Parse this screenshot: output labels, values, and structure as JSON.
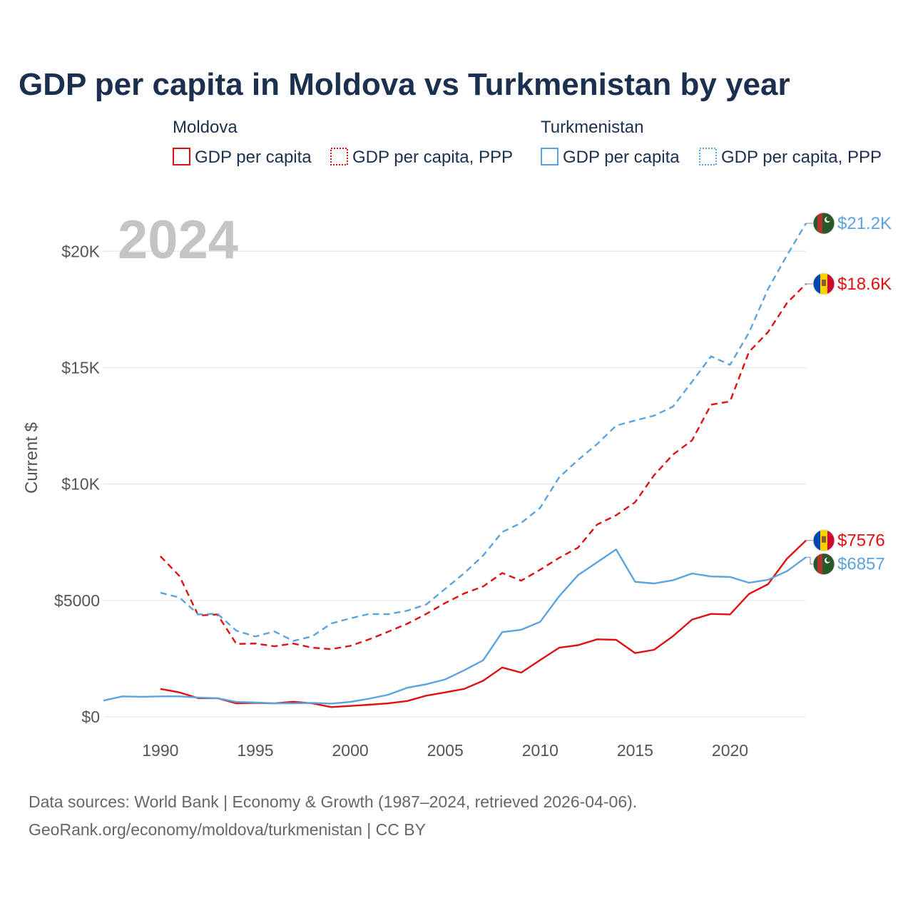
{
  "title": "GDP per capita in Moldova vs Turkmenistan by year",
  "year_display": "2024",
  "legend": {
    "groups": [
      {
        "name": "Moldova",
        "items": [
          {
            "label": "GDP per capita",
            "color": "#e01010",
            "style": "solid"
          },
          {
            "label": "GDP per capita, PPP",
            "color": "#e01010",
            "style": "dotted"
          }
        ]
      },
      {
        "name": "Turkmenistan",
        "items": [
          {
            "label": "GDP per capita",
            "color": "#5ba3e0",
            "style": "solid"
          },
          {
            "label": "GDP per capita, PPP",
            "color": "#5ba3e0",
            "style": "dotted"
          }
        ]
      }
    ]
  },
  "source_lines": [
    "Data sources: World Bank | Economy & Growth (1987–2024, retrieved 2026-04-06).",
    "GeoRank.org/economy/moldova/turkmenistan | CC BY"
  ],
  "chart_data": {
    "type": "line",
    "ylabel": "Current $",
    "xlabel": "",
    "xlim": [
      1987,
      2024
    ],
    "ylim": [
      0,
      22000
    ],
    "x_ticks": [
      1990,
      1995,
      2000,
      2005,
      2010,
      2015,
      2020
    ],
    "x_tick_labels": [
      "1990",
      "1995",
      "2000",
      "2005",
      "2010",
      "2015",
      "2020"
    ],
    "y_ticks": [
      0,
      5000,
      10000,
      15000,
      20000
    ],
    "y_tick_labels": [
      "$0",
      "$5000",
      "$10K",
      "$15K",
      "$20K"
    ],
    "grid": true,
    "series": [
      {
        "name": "Moldova GDP per capita",
        "country": "Moldova",
        "color": "#e01010",
        "dash": "solid",
        "end_label": "$7576",
        "x": [
          1990,
          1991,
          1992,
          1993,
          1994,
          1995,
          1996,
          1997,
          1998,
          1999,
          2000,
          2001,
          2002,
          2003,
          2004,
          2005,
          2006,
          2007,
          2008,
          2009,
          2010,
          2011,
          2012,
          2013,
          2014,
          2015,
          2016,
          2017,
          2018,
          2019,
          2020,
          2021,
          2022,
          2023,
          2024
        ],
        "values": [
          1200,
          1050,
          800,
          800,
          580,
          600,
          580,
          650,
          580,
          420,
          470,
          520,
          580,
          680,
          910,
          1050,
          1200,
          1550,
          2120,
          1900,
          2440,
          2970,
          3080,
          3330,
          3310,
          2740,
          2880,
          3470,
          4180,
          4420,
          4400,
          5280,
          5700,
          6800,
          7576
        ]
      },
      {
        "name": "Moldova GDP per capita, PPP",
        "country": "Moldova",
        "color": "#e01010",
        "dash": "dashed",
        "end_label": "$18.6K",
        "x": [
          1990,
          1991,
          1992,
          1993,
          1994,
          1995,
          1996,
          1997,
          1998,
          1999,
          2000,
          2001,
          2002,
          2003,
          2004,
          2005,
          2006,
          2007,
          2008,
          2009,
          2010,
          2011,
          2012,
          2013,
          2014,
          2015,
          2016,
          2017,
          2018,
          2019,
          2020,
          2021,
          2022,
          2023,
          2024
        ],
        "values": [
          6900,
          6050,
          4350,
          4400,
          3130,
          3150,
          3030,
          3150,
          2970,
          2910,
          3050,
          3330,
          3660,
          4000,
          4420,
          4890,
          5300,
          5600,
          6180,
          5850,
          6320,
          6830,
          7270,
          8260,
          8660,
          9220,
          10380,
          11270,
          11880,
          13410,
          13550,
          15680,
          16530,
          17780,
          18600
        ]
      },
      {
        "name": "Turkmenistan GDP per capita",
        "country": "Turkmenistan",
        "color": "#5ba3e0",
        "dash": "solid",
        "end_label": "$6857",
        "x": [
          1987,
          1988,
          1989,
          1990,
          1991,
          1992,
          1993,
          1994,
          1995,
          1996,
          1997,
          1998,
          1999,
          2000,
          2001,
          2002,
          2003,
          2004,
          2005,
          2006,
          2007,
          2008,
          2009,
          2010,
          2011,
          2012,
          2013,
          2014,
          2015,
          2016,
          2017,
          2018,
          2019,
          2020,
          2021,
          2022,
          2023,
          2024
        ],
        "values": [
          700,
          880,
          860,
          880,
          880,
          830,
          800,
          640,
          620,
          580,
          580,
          600,
          570,
          640,
          780,
          950,
          1250,
          1400,
          1610,
          2000,
          2430,
          3640,
          3740,
          4080,
          5180,
          6090,
          6640,
          7190,
          5800,
          5730,
          5870,
          6160,
          6030,
          6010,
          5760,
          5890,
          6260,
          6857
        ]
      },
      {
        "name": "Turkmenistan GDP per capita, PPP",
        "country": "Turkmenistan",
        "color": "#5ba3e0",
        "dash": "dashed",
        "end_label": "$21.2K",
        "x": [
          1990,
          1991,
          1992,
          1993,
          1994,
          1995,
          1996,
          1997,
          1998,
          1999,
          2000,
          2001,
          2002,
          2003,
          2004,
          2005,
          2006,
          2007,
          2008,
          2009,
          2010,
          2011,
          2012,
          2013,
          2014,
          2015,
          2016,
          2017,
          2018,
          2019,
          2020,
          2021,
          2022,
          2023,
          2024
        ],
        "values": [
          5330,
          5130,
          4400,
          4430,
          3700,
          3450,
          3670,
          3260,
          3460,
          4010,
          4230,
          4420,
          4410,
          4560,
          4830,
          5500,
          6170,
          6930,
          7940,
          8330,
          8980,
          10290,
          11040,
          11720,
          12510,
          12730,
          12940,
          13330,
          14400,
          15490,
          15120,
          16510,
          18380,
          19830,
          21200
        ]
      }
    ]
  }
}
